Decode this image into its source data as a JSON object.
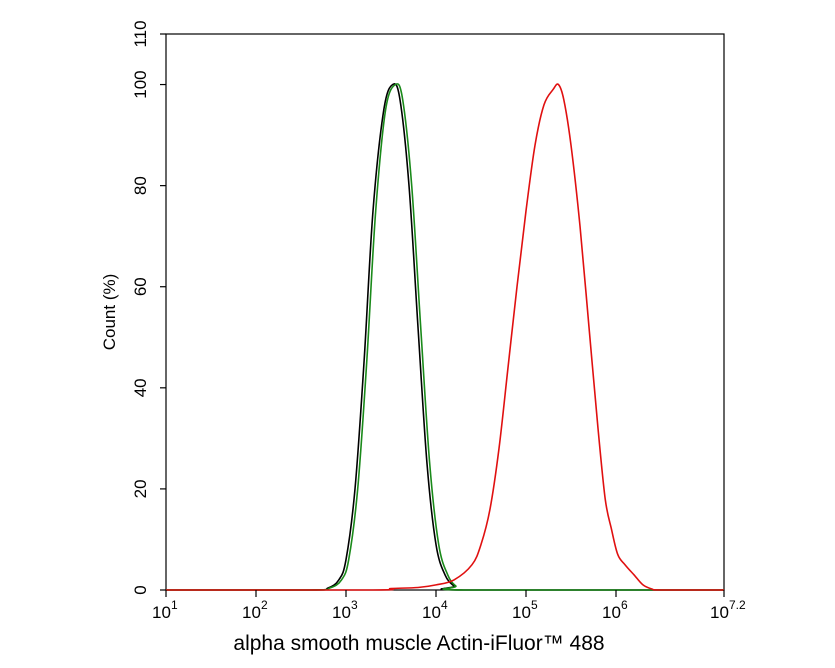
{
  "chart_data": {
    "type": "line",
    "title": "",
    "xlabel": "alpha smooth muscle Actin-iFluor™ 488",
    "ylabel": "Count  (%)",
    "x_scale": "log10",
    "xlim": [
      1,
      7.2
    ],
    "ylim": [
      0,
      110
    ],
    "grid": false,
    "legend": "none",
    "x_ticks": [
      {
        "value": 1,
        "base": "10",
        "exp": "1"
      },
      {
        "value": 2,
        "base": "10",
        "exp": "2"
      },
      {
        "value": 3,
        "base": "10",
        "exp": "3"
      },
      {
        "value": 4,
        "base": "10",
        "exp": "4"
      },
      {
        "value": 5,
        "base": "10",
        "exp": "5"
      },
      {
        "value": 6,
        "base": "10",
        "exp": "6"
      },
      {
        "value": 7.2,
        "base": "10",
        "exp": "7.2"
      }
    ],
    "y_ticks": [
      {
        "value": 0,
        "label": "0"
      },
      {
        "value": 20,
        "label": "20"
      },
      {
        "value": 40,
        "label": "40"
      },
      {
        "value": 60,
        "label": "60"
      },
      {
        "value": 80,
        "label": "80"
      },
      {
        "value": 100,
        "label": "100"
      },
      {
        "value": 110,
        "label": "110"
      }
    ],
    "series": [
      {
        "name": "black",
        "color": "#000000",
        "points": [
          [
            1,
            0
          ],
          [
            2.6,
            0
          ],
          [
            2.8,
            0.4
          ],
          [
            2.92,
            2
          ],
          [
            3.0,
            6
          ],
          [
            3.1,
            20
          ],
          [
            3.2,
            45
          ],
          [
            3.3,
            75
          ],
          [
            3.42,
            95
          ],
          [
            3.52,
            100
          ],
          [
            3.6,
            97
          ],
          [
            3.7,
            80
          ],
          [
            3.8,
            52
          ],
          [
            3.9,
            25
          ],
          [
            4.0,
            9
          ],
          [
            4.1,
            3
          ],
          [
            4.2,
            0.8
          ],
          [
            4.3,
            0
          ],
          [
            7.2,
            0
          ]
        ]
      },
      {
        "name": "green",
        "color": "#1a8a1a",
        "points": [
          [
            1,
            0
          ],
          [
            2.6,
            0
          ],
          [
            2.82,
            0.4
          ],
          [
            2.95,
            2
          ],
          [
            3.03,
            6
          ],
          [
            3.13,
            20
          ],
          [
            3.23,
            45
          ],
          [
            3.33,
            75
          ],
          [
            3.44,
            95
          ],
          [
            3.55,
            100
          ],
          [
            3.63,
            97
          ],
          [
            3.73,
            80
          ],
          [
            3.83,
            52
          ],
          [
            3.93,
            25
          ],
          [
            4.03,
            9
          ],
          [
            4.13,
            3
          ],
          [
            4.22,
            0.8
          ],
          [
            4.32,
            0
          ],
          [
            7.2,
            0
          ]
        ]
      },
      {
        "name": "red",
        "color": "#e01010",
        "points": [
          [
            1,
            0
          ],
          [
            3.3,
            0
          ],
          [
            3.5,
            0.3
          ],
          [
            3.8,
            0.5
          ],
          [
            4.0,
            1
          ],
          [
            4.2,
            2
          ],
          [
            4.4,
            5
          ],
          [
            4.5,
            9
          ],
          [
            4.6,
            16
          ],
          [
            4.7,
            28
          ],
          [
            4.8,
            44
          ],
          [
            4.9,
            60
          ],
          [
            5.0,
            75
          ],
          [
            5.1,
            88
          ],
          [
            5.2,
            96
          ],
          [
            5.3,
            99
          ],
          [
            5.36,
            100
          ],
          [
            5.42,
            97
          ],
          [
            5.5,
            88
          ],
          [
            5.6,
            72
          ],
          [
            5.7,
            52
          ],
          [
            5.8,
            32
          ],
          [
            5.88,
            18
          ],
          [
            5.95,
            12
          ],
          [
            6.02,
            7
          ],
          [
            6.1,
            5
          ],
          [
            6.2,
            3
          ],
          [
            6.3,
            1
          ],
          [
            6.4,
            0.2
          ],
          [
            6.5,
            0
          ],
          [
            7.2,
            0
          ]
        ]
      }
    ]
  }
}
